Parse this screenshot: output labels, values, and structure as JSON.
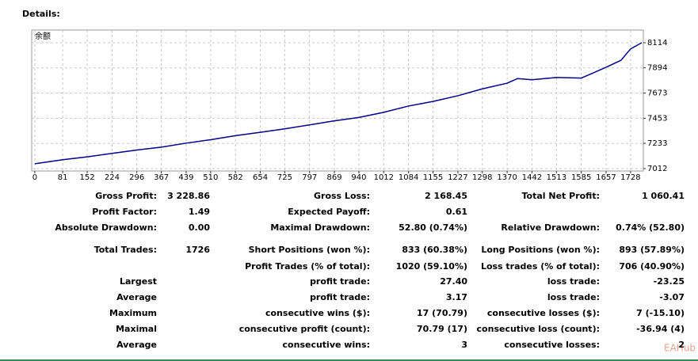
{
  "heading": "Details:",
  "chart_data": {
    "type": "line",
    "label": "余额",
    "x": [
      0,
      81,
      152,
      224,
      296,
      367,
      439,
      510,
      582,
      654,
      725,
      797,
      869,
      940,
      1012,
      1084,
      1155,
      1227,
      1298,
      1370,
      1400,
      1442,
      1513,
      1585,
      1620,
      1657,
      1700,
      1728,
      1760
    ],
    "series": [
      {
        "color": "#00008b",
        "values": [
          7054,
          7090,
          7115,
          7145,
          7175,
          7200,
          7235,
          7265,
          7300,
          7330,
          7360,
          7395,
          7430,
          7460,
          7505,
          7560,
          7600,
          7650,
          7710,
          7760,
          7800,
          7790,
          7810,
          7805,
          7850,
          7900,
          7960,
          8060,
          8114
        ]
      }
    ],
    "xlim": [
      -9,
      1765
    ],
    "ylim": [
      6991,
      8225
    ],
    "xticks": [
      0,
      81,
      152,
      224,
      296,
      367,
      439,
      510,
      582,
      654,
      725,
      797,
      869,
      940,
      1012,
      1084,
      1155,
      1227,
      1298,
      1370,
      1442,
      1513,
      1585,
      1657,
      1728
    ],
    "yticks": [
      7012,
      7233,
      7453,
      7673,
      7894,
      8114
    ],
    "grid": true
  },
  "stats": {
    "rows": [
      [
        "Gross Profit:",
        "3 228.86",
        "Gross Loss:",
        "2 168.45",
        "Total Net Profit:",
        "1 060.41"
      ],
      [
        "Profit Factor:",
        "1.49",
        "Expected Payoff:",
        "0.61",
        null,
        null
      ],
      [
        "Absolute Drawdown:",
        "0.00",
        "Maximal Drawdown:",
        "52.80 (0.74%)",
        "Relative Drawdown:",
        "0.74% (52.80)"
      ],
      [
        "Total Trades:",
        "1726",
        "Short Positions (won %):",
        "833 (60.38%)",
        "Long Positions (won %):",
        "893 (57.89%)"
      ],
      [
        null,
        null,
        "Profit Trades (% of total):",
        "1020 (59.10%)",
        "Loss trades (% of total):",
        "706 (40.90%)"
      ],
      [
        "Largest",
        null,
        "profit trade:",
        "27.40",
        "loss trade:",
        "-23.25"
      ],
      [
        "Average",
        null,
        "profit trade:",
        "3.17",
        "loss trade:",
        "-3.07"
      ],
      [
        "Maximum",
        null,
        "consecutive wins ($):",
        "17 (70.79)",
        "consecutive losses ($):",
        "7 (-15.10)"
      ],
      [
        "Maximal",
        null,
        "consecutive profit (count):",
        "70.79 (17)",
        "consecutive loss (count):",
        "-36.94 (4)"
      ],
      [
        "Average",
        null,
        "consecutive wins:",
        "3",
        "consecutive losses:",
        "2"
      ]
    ]
  },
  "watermark": "EAHub"
}
